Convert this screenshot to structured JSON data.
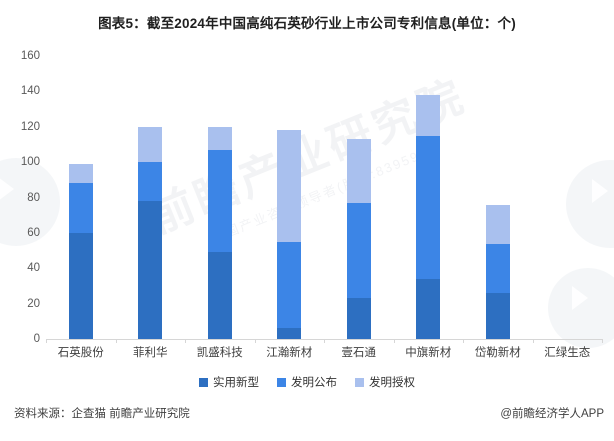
{
  "title": "图表5：截至2024年中国高纯石英砂行业上市公司专利信息(单位：个)",
  "chart_data": {
    "type": "bar",
    "stacked": true,
    "title": "图表5：截至2024年中国高纯石英砂行业上市公司专利信息(单位：个)",
    "categories": [
      "石英股份",
      "菲利华",
      "凯盛科技",
      "江瀚新材",
      "壹石通",
      "中旗新材",
      "岱勒新材",
      "汇绿生态"
    ],
    "series": [
      {
        "name": "实用新型",
        "color": "#2d6fc1",
        "values": [
          60,
          78,
          49,
          6,
          23,
          34,
          26,
          0
        ]
      },
      {
        "name": "发明公布",
        "color": "#3c85e6",
        "values": [
          28,
          22,
          58,
          49,
          54,
          81,
          28,
          0
        ]
      },
      {
        "name": "发明授权",
        "color": "#a9c0ee",
        "values": [
          11,
          20,
          13,
          63,
          36,
          23,
          22,
          0
        ]
      }
    ],
    "totals": [
      99,
      120,
      120,
      118,
      113,
      138,
      76,
      0
    ],
    "ylim": [
      0,
      160
    ],
    "ytick_step": 20,
    "xlabel": "",
    "ylabel": "",
    "grid": false,
    "legend_position": "bottom"
  },
  "watermark": {
    "text": "前瞻产业研究院",
    "subtext": "中国产业咨询领导者(股票:839599)"
  },
  "footer": {
    "source": "资料来源：企查猫 前瞻产业研究院",
    "credit": "@前瞻经济学人APP"
  }
}
